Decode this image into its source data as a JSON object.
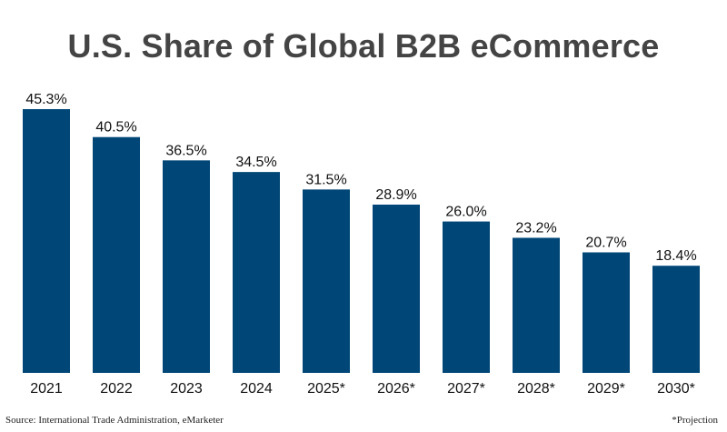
{
  "chart_data": {
    "type": "bar",
    "title": "U.S. Share of Global B2B eCommerce",
    "xlabel": "",
    "ylabel": "",
    "categories": [
      "2021",
      "2022",
      "2023",
      "2024",
      "2025*",
      "2026*",
      "2027*",
      "2028*",
      "2029*",
      "2030*"
    ],
    "values": [
      45.3,
      40.5,
      36.5,
      34.5,
      31.5,
      28.9,
      26.0,
      23.2,
      20.7,
      18.4
    ],
    "value_labels": [
      "45.3%",
      "40.5%",
      "36.5%",
      "34.5%",
      "31.5%",
      "28.9%",
      "26.0%",
      "23.2%",
      "20.7%",
      "18.4%"
    ],
    "ylim": [
      0,
      45.3
    ],
    "grid": false,
    "bar_color": "#004677"
  },
  "footer": {
    "source": "Source: International Trade Administration, eMarketer",
    "note": "*Projection"
  }
}
